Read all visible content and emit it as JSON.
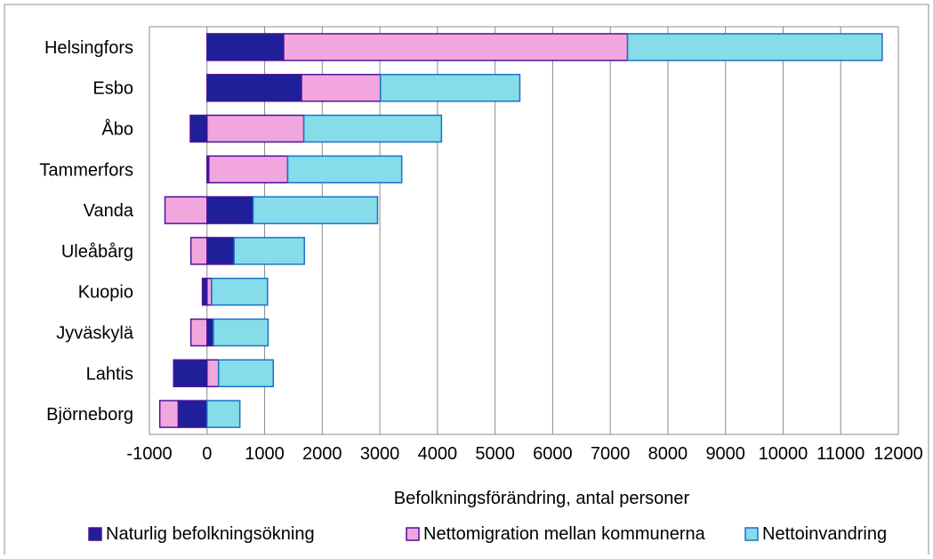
{
  "chart_data": {
    "type": "bar",
    "orientation": "horizontal",
    "stacked": true,
    "categories": [
      "Helsingfors",
      "Esbo",
      "Åbo",
      "Tammerfors",
      "Vanda",
      "Uleåbårg",
      "Kuopio",
      "Jyväskylä",
      "Lahtis",
      "Björneborg"
    ],
    "series": [
      {
        "name": "Naturlig befolkningsökning",
        "color": "#1f1f99",
        "values": [
          1330,
          1640,
          -290,
          30,
          800,
          470,
          -80,
          110,
          -580,
          -500
        ]
      },
      {
        "name": "Nettomigration mellan kommunerna",
        "color": "#f2a6de",
        "values": [
          5970,
          1370,
          1680,
          1370,
          -730,
          -280,
          80,
          -280,
          200,
          -320
        ]
      },
      {
        "name": "Nettoinvandring",
        "color": "#86dce8",
        "values": [
          4420,
          2420,
          2390,
          1980,
          2160,
          1220,
          970,
          950,
          950,
          570
        ]
      }
    ],
    "xlabel": "Befolkningsförändring, antal personer",
    "ylabel": "",
    "xlim": [
      -1000,
      12000
    ],
    "xticks": [
      "-1000",
      "0",
      "1000",
      "2000",
      "3000",
      "4000",
      "5000",
      "6000",
      "7000",
      "8000",
      "9000",
      "10000",
      "11000",
      "12000"
    ],
    "grid": "vertical",
    "legend_position": "bottom"
  }
}
